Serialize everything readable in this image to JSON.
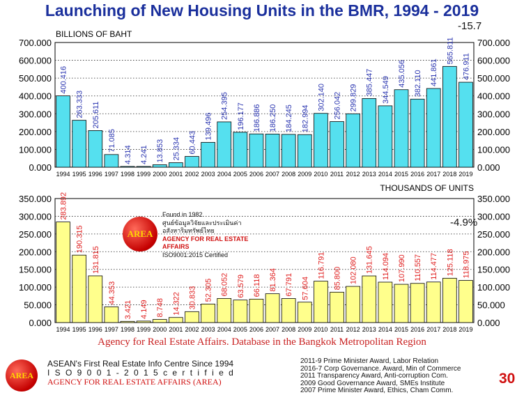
{
  "title": "Launching of New Housing Units in the BMR, 1994 - 2019",
  "chart_data": [
    {
      "type": "bar",
      "ylabel": "BILLIONS OF BAHT",
      "ylim": [
        0,
        700
      ],
      "yticks": [
        "0.000",
        "100.000",
        "200.000",
        "300.000",
        "400.000",
        "500.000",
        "600.000",
        "700.000"
      ],
      "categories": [
        "1994",
        "1995",
        "1996",
        "1997",
        "1998",
        "1999",
        "2000",
        "2001",
        "2002",
        "2003",
        "2004",
        "2005",
        "2006",
        "2007",
        "2008",
        "2009",
        "2010",
        "2011",
        "2012",
        "2013",
        "2014",
        "2015",
        "2016",
        "2017",
        "2018",
        "2019"
      ],
      "values": [
        400.416,
        263.333,
        205.611,
        71.085,
        4.314,
        4.241,
        13.853,
        25.334,
        60.443,
        139.496,
        254.395,
        196.177,
        186.886,
        186.25,
        184.245,
        182.994,
        302.14,
        256.042,
        299.829,
        385.447,
        344.549,
        435.056,
        382.11,
        441.861,
        565.811,
        476.911
      ],
      "labels": [
        "400.416",
        "263.333",
        "205.611",
        "71.085",
        "4.314",
        "4.241",
        "13.853",
        "25.334",
        "60.443",
        "139.496",
        "254.395",
        "196.177",
        "186.886",
        "186.250",
        "184.245",
        "182.994",
        "302.140",
        "256.042",
        "299.829",
        "385.447",
        "344.549",
        "435.056",
        "382.110",
        "441.861",
        "565.811",
        "476.911"
      ],
      "annotation": "-15.7",
      "bar_color": "#55e0ef",
      "label_color": "#2a35b0",
      "grid": "dotted"
    },
    {
      "type": "bar",
      "ylabel": "THOUSANDS OF UNITS",
      "ylim": [
        0,
        350
      ],
      "yticks": [
        "0.000",
        "50.000",
        "100.000",
        "150.000",
        "200.000",
        "250.000",
        "300.000",
        "350.000"
      ],
      "categories": [
        "1994",
        "1995",
        "1996",
        "1997",
        "1998",
        "1999",
        "2000",
        "2001",
        "2002",
        "2003",
        "2004",
        "2005",
        "2006",
        "2007",
        "2008",
        "2009",
        "2010",
        "2011",
        "2012",
        "2013",
        "2014",
        "2015",
        "2016",
        "2017",
        "2018",
        "2019"
      ],
      "values": [
        283.892,
        190.315,
        131.815,
        44.353,
        3.421,
        4.149,
        8.748,
        14.322,
        30.833,
        52.305,
        68.052,
        63.579,
        66.118,
        81.364,
        67.791,
        57.604,
        116.791,
        85.8,
        102.08,
        131.645,
        114.094,
        107.99,
        110.557,
        114.477,
        125.118,
        118.975
      ],
      "labels": [
        "283.892",
        "190.315",
        "131.815",
        "44.353",
        "3.421",
        "4.149",
        "8.748",
        "14.322",
        "30.833",
        "52.305",
        "68.052",
        "63.579",
        "66.118",
        "81.364",
        "67.791",
        "57.604",
        "116.791",
        "85.800",
        "102.080",
        "131.645",
        "114.094",
        "107.990",
        "110.557",
        "114.477",
        "125.118",
        "118.975"
      ],
      "annotation": "-4.9%",
      "bar_color": "#ffff8c",
      "label_color": "#e02020",
      "grid": "dotted"
    }
  ],
  "badge": {
    "logo_text": "AREA",
    "line1": "Found in 1982",
    "line2": "ศูนย์ข้อมูลวิจัยและประเมินค่า อสังหาริมทรัพย์ไทย",
    "line3": "AGENCY FOR REAL ESTATE AFFAIRS",
    "line4": "ISO9001:2015 Certified"
  },
  "source": "Agency for Real Estate Affairs. Database in the Bangkok Metropolitan Region",
  "footer": {
    "logo_text": "AREA",
    "line1": "ASEAN's First Real Estate Info Centre Since 1994",
    "line2": "I S O  9 0 0 1 - 2 0 1 5  c e r t i f i e d",
    "line3": "AGENCY FOR REAL ESTATE AFFAIRS (AREA)"
  },
  "awards": [
    "2011-9 Prime Minister Award, Labor Relation",
    "2016-7 Corp Governance. Award, Min of Commerce",
    "2011 Transparency Award, Anti-corruption Com.",
    "2009 Good Governance Award, SMEs Institute",
    "2007 Prime Minister Award, Ethics, Cham Comm."
  ],
  "page_number": "30"
}
